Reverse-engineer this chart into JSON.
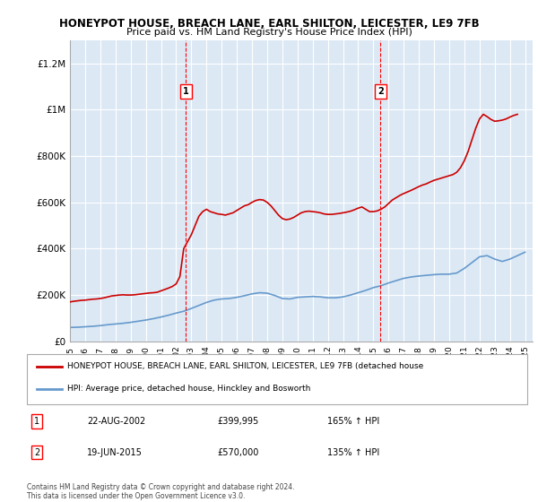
{
  "title": "HONEYPOT HOUSE, BREACH LANE, EARL SHILTON, LEICESTER, LE9 7FB",
  "subtitle": "Price paid vs. HM Land Registry's House Price Index (HPI)",
  "background_color": "#dce9f5",
  "plot_background": "#dce9f5",
  "ylabel_ticks": [
    "£0",
    "£200K",
    "£400K",
    "£600K",
    "£800K",
    "£1M",
    "£1.2M"
  ],
  "ytick_values": [
    0,
    200000,
    400000,
    600000,
    800000,
    1000000,
    1200000
  ],
  "ylim": [
    0,
    1300000
  ],
  "xlim_start": 1995.0,
  "xlim_end": 2025.5,
  "sale1": {
    "date_label": "22-AUG-2002",
    "price": 399995,
    "year": 2002.64,
    "label": "1",
    "hpi_pct": "165%",
    "arrow": "↑"
  },
  "sale2": {
    "date_label": "19-JUN-2015",
    "price": 570000,
    "year": 2015.47,
    "label": "2",
    "hpi_pct": "135%",
    "arrow": "↑"
  },
  "red_line_color": "#cc0000",
  "blue_line_color": "#6699cc",
  "hpi_data": {
    "years": [
      1995.0,
      1995.5,
      1996.0,
      1996.5,
      1997.0,
      1997.5,
      1998.0,
      1998.5,
      1999.0,
      1999.5,
      2000.0,
      2000.5,
      2001.0,
      2001.5,
      2002.0,
      2002.5,
      2003.0,
      2003.5,
      2004.0,
      2004.5,
      2005.0,
      2005.5,
      2006.0,
      2006.5,
      2007.0,
      2007.5,
      2008.0,
      2008.5,
      2009.0,
      2009.5,
      2010.0,
      2010.5,
      2011.0,
      2011.5,
      2012.0,
      2012.5,
      2013.0,
      2013.5,
      2014.0,
      2014.5,
      2015.0,
      2015.5,
      2016.0,
      2016.5,
      2017.0,
      2017.5,
      2018.0,
      2018.5,
      2019.0,
      2019.5,
      2020.0,
      2020.5,
      2021.0,
      2021.5,
      2022.0,
      2022.5,
      2023.0,
      2023.5,
      2024.0,
      2024.5,
      2025.0
    ],
    "values": [
      60000,
      61000,
      63000,
      65000,
      68000,
      72000,
      75000,
      78000,
      82000,
      87000,
      92000,
      98000,
      105000,
      113000,
      122000,
      130000,
      142000,
      155000,
      168000,
      178000,
      183000,
      185000,
      190000,
      197000,
      205000,
      210000,
      208000,
      198000,
      185000,
      183000,
      190000,
      192000,
      194000,
      192000,
      188000,
      188000,
      192000,
      200000,
      210000,
      220000,
      232000,
      240000,
      252000,
      262000,
      272000,
      278000,
      282000,
      285000,
      288000,
      290000,
      290000,
      295000,
      315000,
      340000,
      365000,
      370000,
      355000,
      345000,
      355000,
      370000,
      385000
    ]
  },
  "house_data": {
    "years": [
      1995.0,
      1995.25,
      1995.5,
      1995.75,
      1996.0,
      1996.25,
      1996.5,
      1996.75,
      1997.0,
      1997.25,
      1997.5,
      1997.75,
      1998.0,
      1998.25,
      1998.5,
      1998.75,
      1999.0,
      1999.25,
      1999.5,
      1999.75,
      2000.0,
      2000.25,
      2000.5,
      2000.75,
      2001.0,
      2001.25,
      2001.5,
      2001.75,
      2002.0,
      2002.25,
      2002.5,
      2002.75,
      2003.0,
      2003.25,
      2003.5,
      2003.75,
      2004.0,
      2004.25,
      2004.5,
      2004.75,
      2005.0,
      2005.25,
      2005.5,
      2005.75,
      2006.0,
      2006.25,
      2006.5,
      2006.75,
      2007.0,
      2007.25,
      2007.5,
      2007.75,
      2008.0,
      2008.25,
      2008.5,
      2008.75,
      2009.0,
      2009.25,
      2009.5,
      2009.75,
      2010.0,
      2010.25,
      2010.5,
      2010.75,
      2011.0,
      2011.25,
      2011.5,
      2011.75,
      2012.0,
      2012.25,
      2012.5,
      2012.75,
      2013.0,
      2013.25,
      2013.5,
      2013.75,
      2014.0,
      2014.25,
      2014.5,
      2014.75,
      2015.0,
      2015.25,
      2015.5,
      2015.75,
      2016.0,
      2016.25,
      2016.5,
      2016.75,
      2017.0,
      2017.25,
      2017.5,
      2017.75,
      2018.0,
      2018.25,
      2018.5,
      2018.75,
      2019.0,
      2019.25,
      2019.5,
      2019.75,
      2020.0,
      2020.25,
      2020.5,
      2020.75,
      2021.0,
      2021.25,
      2021.5,
      2021.75,
      2022.0,
      2022.25,
      2022.5,
      2022.75,
      2023.0,
      2023.25,
      2023.5,
      2023.75,
      2024.0,
      2024.25,
      2024.5
    ],
    "values": [
      170000,
      173000,
      175000,
      177000,
      178000,
      180000,
      182000,
      183000,
      185000,
      188000,
      192000,
      196000,
      198000,
      200000,
      201000,
      200000,
      200000,
      201000,
      203000,
      205000,
      207000,
      209000,
      210000,
      212000,
      218000,
      224000,
      230000,
      237000,
      248000,
      280000,
      399995,
      430000,
      460000,
      500000,
      540000,
      560000,
      570000,
      560000,
      555000,
      550000,
      548000,
      545000,
      550000,
      555000,
      565000,
      575000,
      585000,
      590000,
      600000,
      608000,
      612000,
      610000,
      600000,
      585000,
      565000,
      545000,
      530000,
      525000,
      528000,
      535000,
      545000,
      555000,
      560000,
      562000,
      560000,
      558000,
      555000,
      550000,
      548000,
      548000,
      550000,
      552000,
      555000,
      558000,
      562000,
      568000,
      575000,
      580000,
      570000,
      560000,
      560000,
      563000,
      570000,
      580000,
      595000,
      610000,
      620000,
      630000,
      638000,
      645000,
      652000,
      660000,
      668000,
      675000,
      680000,
      688000,
      695000,
      700000,
      705000,
      710000,
      715000,
      720000,
      730000,
      750000,
      780000,
      820000,
      870000,
      920000,
      960000,
      980000,
      970000,
      958000,
      950000,
      952000,
      955000,
      960000,
      968000,
      975000,
      980000
    ]
  },
  "legend_line1": "HONEYPOT HOUSE, BREACH LANE, EARL SHILTON, LEICESTER, LE9 7FB (detached house",
  "legend_line2": "HPI: Average price, detached house, Hinckley and Bosworth",
  "footer": "Contains HM Land Registry data © Crown copyright and database right 2024.\nThis data is licensed under the Open Government Licence v3.0.",
  "xtick_years": [
    1995,
    1996,
    1997,
    1998,
    1999,
    2000,
    2001,
    2002,
    2003,
    2004,
    2005,
    2006,
    2007,
    2008,
    2009,
    2010,
    2011,
    2012,
    2013,
    2014,
    2015,
    2016,
    2017,
    2018,
    2019,
    2020,
    2021,
    2022,
    2023,
    2024,
    2025
  ]
}
